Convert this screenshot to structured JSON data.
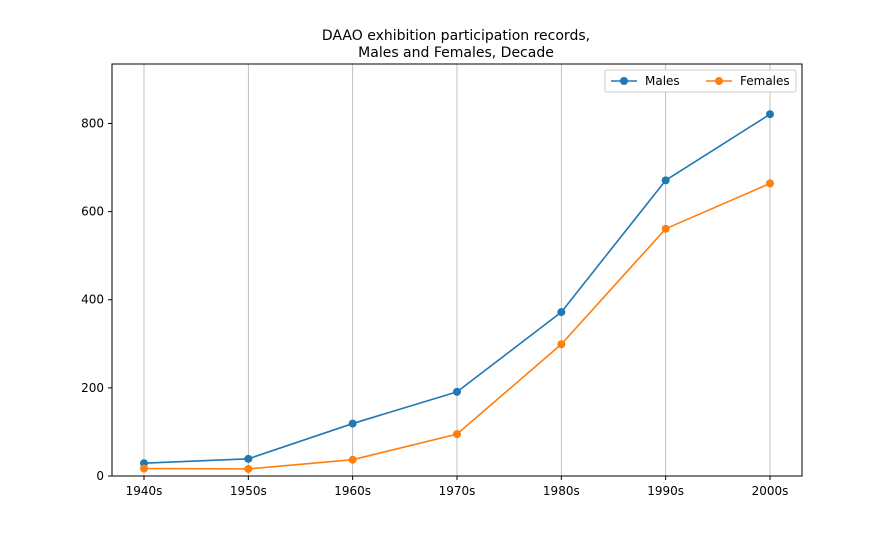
{
  "chart_data": {
    "type": "line",
    "title_lines": [
      "DAAO exhibition participation records,",
      "Males and Females, Decade"
    ],
    "xlabel": "",
    "ylabel": "",
    "categories": [
      "1940s",
      "1950s",
      "1960s",
      "1970s",
      "1980s",
      "1990s",
      "2000s"
    ],
    "ylim": [
      0,
      935
    ],
    "yticks": [
      0,
      200,
      400,
      600,
      800
    ],
    "grid": "vertical",
    "legend_placement": "top-right",
    "series": [
      {
        "name": "Males",
        "color": "#1f77b4",
        "values": [
          29,
          39,
          119,
          191,
          372,
          671,
          821
        ]
      },
      {
        "name": "Females",
        "color": "#ff7f0e",
        "values": [
          17,
          16,
          37,
          95,
          299,
          561,
          664
        ]
      }
    ]
  }
}
